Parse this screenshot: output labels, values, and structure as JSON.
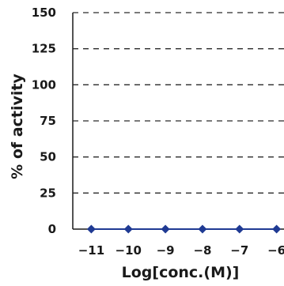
{
  "chart_data": {
    "type": "line",
    "title": "",
    "xlabel": "Log[conc.(M)]",
    "ylabel": "% of activity",
    "xlim": [
      -11.5,
      -5.8
    ],
    "ylim": [
      0,
      150
    ],
    "x_ticks": [
      -11,
      -10,
      -9,
      -8,
      -7,
      -6
    ],
    "x_tick_labels": [
      "-11",
      "-10",
      "-9",
      "-8",
      "-7",
      "-6"
    ],
    "y_ticks": [
      0,
      25,
      50,
      75,
      100,
      125,
      150
    ],
    "y_tick_labels": [
      "0",
      "25",
      "50",
      "75",
      "100",
      "125",
      "150"
    ],
    "grid": "horizontal dashed",
    "legend": "none",
    "series": [
      {
        "x": [
          -11,
          -10,
          -9,
          -8,
          -7,
          -6
        ],
        "y": [
          0,
          0,
          0,
          0,
          0,
          0
        ],
        "marker": "diamond",
        "color": "#1f3a93"
      }
    ]
  }
}
